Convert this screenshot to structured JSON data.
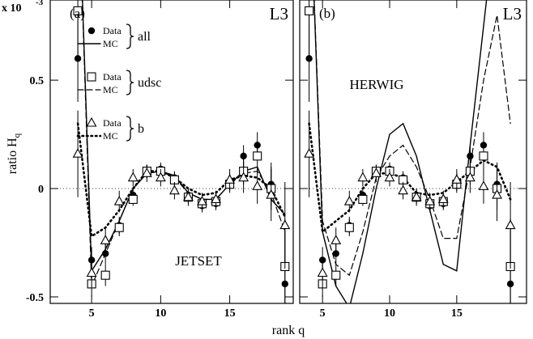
{
  "chart_data": [
    {
      "type": "line",
      "panel_label": "(a)",
      "experiment": "L3",
      "generator": "JETSET",
      "scale_label": "x 10",
      "scale_exponent": "-3",
      "y_label": "ratio H",
      "y_label_sub": "q",
      "legend": {
        "data_label": "Data",
        "mc_label": "MC"
      },
      "xlim": [
        2,
        19.6
      ],
      "ylim": [
        -0.53,
        0.87
      ],
      "xticks": [
        5,
        10,
        15
      ],
      "yticks": [
        -0.5,
        0,
        0.5
      ],
      "x": [
        4,
        5,
        6,
        7,
        8,
        9,
        10,
        11,
        12,
        13,
        14,
        15,
        16,
        17,
        18,
        19
      ],
      "series": [
        {
          "name": "all",
          "marker": "filled-circle",
          "line": "solid",
          "color": "#000000",
          "values": [
            0.6,
            -0.33,
            -0.3,
            -0.17,
            -0.03,
            0.08,
            0.09,
            0.05,
            -0.03,
            -0.08,
            -0.07,
            0.03,
            0.15,
            0.2,
            0.02,
            -0.44
          ],
          "errors": [
            0.2,
            0.06,
            0.05,
            0.04,
            0.03,
            0.03,
            0.03,
            0.03,
            0.03,
            0.03,
            0.03,
            0.04,
            0.05,
            0.06,
            0.1,
            0.25
          ],
          "mc": [
            1.5,
            -0.38,
            -0.28,
            -0.15,
            0.0,
            0.07,
            0.08,
            0.06,
            -0.02,
            -0.05,
            -0.05,
            0.02,
            0.08,
            0.1,
            -0.05,
            -0.12
          ]
        },
        {
          "name": "udsc",
          "marker": "open-square",
          "line": "dashed",
          "color": "#000000",
          "values": [
            0.82,
            -0.44,
            -0.4,
            -0.18,
            -0.05,
            0.08,
            0.08,
            0.04,
            -0.04,
            -0.07,
            -0.06,
            0.02,
            0.08,
            0.15,
            0.0,
            -0.36
          ],
          "errors": [
            0.22,
            0.06,
            0.05,
            0.04,
            0.03,
            0.03,
            0.03,
            0.03,
            0.03,
            0.03,
            0.03,
            0.04,
            0.06,
            0.07,
            0.1,
            0.22
          ],
          "mc": [
            1.5,
            -0.45,
            -0.3,
            -0.15,
            0.0,
            0.07,
            0.08,
            0.05,
            -0.02,
            -0.05,
            -0.05,
            0.02,
            0.07,
            0.08,
            -0.02,
            -0.2
          ]
        },
        {
          "name": "b",
          "marker": "open-triangle",
          "line": "dotted",
          "color": "#000000",
          "values": [
            0.16,
            -0.39,
            -0.24,
            -0.06,
            0.05,
            0.07,
            0.05,
            -0.01,
            -0.04,
            -0.06,
            -0.05,
            0.04,
            0.05,
            0.01,
            -0.03,
            -0.17
          ],
          "errors": [
            0.2,
            0.07,
            0.06,
            0.05,
            0.04,
            0.04,
            0.04,
            0.04,
            0.04,
            0.04,
            0.04,
            0.05,
            0.07,
            0.08,
            0.12,
            0.2
          ],
          "mc": [
            0.3,
            -0.22,
            -0.18,
            -0.1,
            0.0,
            0.08,
            0.08,
            0.05,
            0.0,
            -0.03,
            -0.02,
            0.04,
            0.06,
            0.05,
            0.0,
            -0.13
          ]
        }
      ]
    },
    {
      "type": "line",
      "panel_label": "(b)",
      "experiment": "L3",
      "generator": "HERWIG",
      "x_label": "rank q",
      "xlim": [
        3.3,
        20.2
      ],
      "ylim": [
        -0.53,
        0.87
      ],
      "xticks": [
        5,
        10,
        15
      ],
      "yticks": [
        -0.5,
        0,
        0.5
      ],
      "x": [
        4,
        5,
        6,
        7,
        8,
        9,
        10,
        11,
        12,
        13,
        14,
        15,
        16,
        17,
        18,
        19
      ],
      "series": [
        {
          "name": "all",
          "marker": "filled-circle",
          "line": "solid",
          "color": "#000000",
          "values": [
            0.6,
            -0.33,
            -0.3,
            -0.17,
            -0.03,
            0.08,
            0.09,
            0.05,
            -0.03,
            -0.08,
            -0.07,
            0.03,
            0.15,
            0.2,
            0.02,
            -0.44
          ],
          "errors": [
            0.2,
            0.06,
            0.05,
            0.04,
            0.03,
            0.03,
            0.03,
            0.03,
            0.03,
            0.03,
            0.03,
            0.04,
            0.05,
            0.06,
            0.1,
            0.25
          ],
          "mc": [
            1.5,
            -0.2,
            -0.45,
            -0.55,
            -0.3,
            0.0,
            0.25,
            0.3,
            0.15,
            -0.1,
            -0.35,
            -0.38,
            0.2,
            0.75,
            1.3,
            1.5
          ]
        },
        {
          "name": "udsc",
          "marker": "open-square",
          "line": "dashed",
          "color": "#000000",
          "values": [
            0.82,
            -0.44,
            -0.4,
            -0.18,
            -0.05,
            0.08,
            0.08,
            0.04,
            -0.04,
            -0.07,
            -0.06,
            0.02,
            0.08,
            0.15,
            0.0,
            -0.36
          ],
          "errors": [
            0.22,
            0.06,
            0.05,
            0.04,
            0.03,
            0.03,
            0.03,
            0.03,
            0.03,
            0.03,
            0.03,
            0.04,
            0.06,
            0.07,
            0.1,
            0.22
          ],
          "mc": [
            1.5,
            -0.15,
            -0.35,
            -0.4,
            -0.2,
            0.05,
            0.15,
            0.2,
            0.1,
            -0.05,
            -0.23,
            -0.23,
            0.1,
            0.5,
            0.8,
            0.3
          ]
        },
        {
          "name": "b",
          "marker": "open-triangle",
          "line": "dotted",
          "color": "#000000",
          "values": [
            0.16,
            -0.39,
            -0.24,
            -0.06,
            0.05,
            0.07,
            0.05,
            -0.01,
            -0.04,
            -0.06,
            -0.05,
            0.04,
            0.05,
            0.01,
            -0.03,
            -0.17
          ],
          "errors": [
            0.2,
            0.07,
            0.06,
            0.05,
            0.04,
            0.04,
            0.04,
            0.04,
            0.04,
            0.04,
            0.04,
            0.05,
            0.07,
            0.08,
            0.12,
            0.2
          ],
          "mc": [
            0.3,
            -0.2,
            -0.15,
            -0.1,
            0.0,
            0.07,
            0.07,
            0.05,
            -0.02,
            -0.03,
            -0.02,
            0.03,
            0.08,
            0.13,
            0.1,
            -0.05
          ]
        }
      ]
    }
  ]
}
